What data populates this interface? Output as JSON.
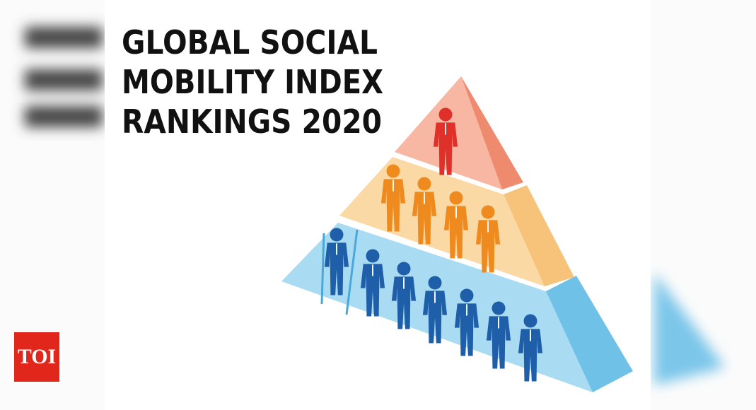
{
  "title": {
    "lines": [
      "GLOBAL SOCIAL",
      "MOBILITY INDEX",
      "RANKINGS 2020"
    ]
  },
  "logo": {
    "text": "TOI"
  }
}
